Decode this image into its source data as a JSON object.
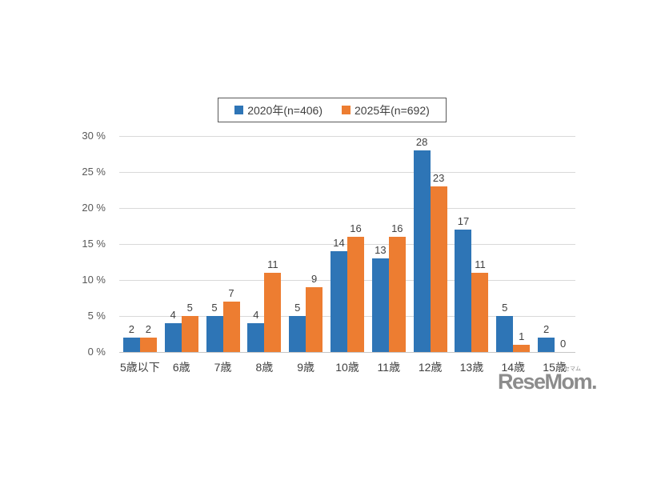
{
  "legend": {
    "items": [
      {
        "label": "2020年(n=406)",
        "color": "#2E75B6"
      },
      {
        "label": "2025年(n=692)",
        "color": "#ED7D31"
      }
    ]
  },
  "chart_data": {
    "type": "bar",
    "title": "",
    "xlabel": "",
    "ylabel": "%",
    "categories": [
      "5歳以下",
      "6歳",
      "7歳",
      "8歳",
      "9歳",
      "10歳",
      "11歳",
      "12歳",
      "13歳",
      "14歳",
      "15歳"
    ],
    "series": [
      {
        "name": "2020年(n=406)",
        "color": "#2E75B6",
        "values": [
          2,
          4,
          5,
          4,
          5,
          14,
          13,
          28,
          17,
          5,
          2
        ]
      },
      {
        "name": "2025年(n=692)",
        "color": "#ED7D31",
        "values": [
          2,
          5,
          7,
          11,
          9,
          16,
          16,
          23,
          11,
          1,
          0
        ]
      }
    ],
    "ylim": [
      0,
      30
    ],
    "yticks": [
      0,
      5,
      10,
      15,
      20,
      25,
      30
    ],
    "ytick_labels": [
      "0 %",
      "5 %",
      "10 %",
      "15 %",
      "20 %",
      "25 %",
      "30 %"
    ],
    "grid": true,
    "data_labels": true,
    "legend_position": "top-center",
    "colors": {
      "gridline": "#D9D9D9",
      "axis_line": "#C6C6C6",
      "tick_text": "#595959",
      "label_text": "#404040"
    }
  },
  "watermark": {
    "text": "ReseMom.",
    "ruby": "リセマム",
    "color": "#8C8C8C"
  }
}
